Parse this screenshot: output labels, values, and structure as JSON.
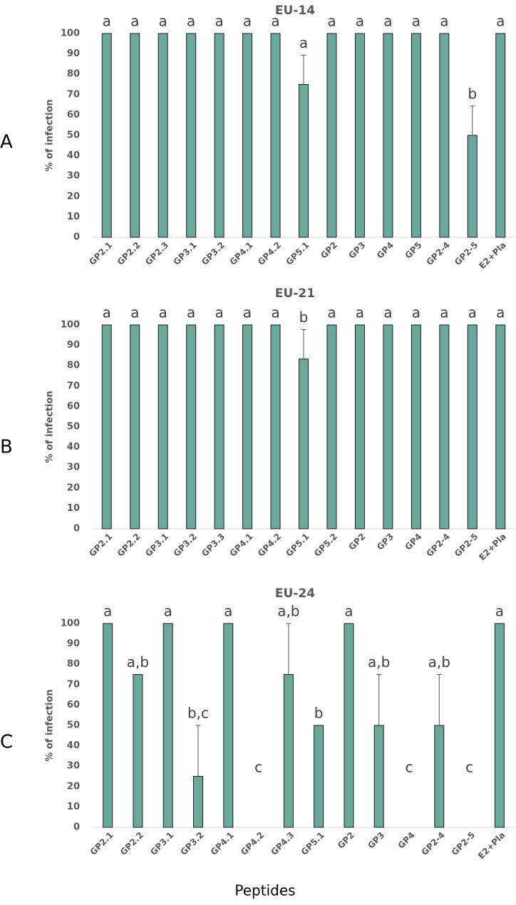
{
  "x_axis_label": "Peptides",
  "chart_data": [
    {
      "panel_label": "A",
      "type": "bar",
      "title": "EU-14",
      "ylabel": "% of infection",
      "ylim": [
        0,
        100
      ],
      "yticks": [
        0,
        10,
        20,
        30,
        40,
        50,
        60,
        70,
        80,
        90,
        100
      ],
      "bar_color": "#6aa99a",
      "categories": [
        "GP2.1",
        "GP2.2",
        "GP2.3",
        "GP3.1",
        "GP3.2",
        "GP4.1",
        "GP4.2",
        "GP5.1",
        "GP2",
        "GP3",
        "GP4",
        "GP5",
        "GP2-4",
        "GP2-5",
        "E2+Pla"
      ],
      "values": [
        100,
        100,
        100,
        100,
        100,
        100,
        100,
        75,
        100,
        100,
        100,
        100,
        100,
        50,
        100
      ],
      "errors": [
        0,
        0,
        0,
        0,
        0,
        0,
        0,
        14.4,
        0,
        0,
        0,
        0,
        0,
        14.4,
        0
      ],
      "significance": [
        "a",
        "a",
        "a",
        "a",
        "a",
        "a",
        "a",
        "a",
        "a",
        "a",
        "a",
        "a",
        "a",
        "b",
        "a"
      ]
    },
    {
      "panel_label": "B",
      "type": "bar",
      "title": "EU-21",
      "ylabel": "% of infection",
      "ylim": [
        0,
        100
      ],
      "yticks": [
        0,
        10,
        20,
        30,
        40,
        50,
        60,
        70,
        80,
        90,
        100
      ],
      "bar_color": "#6aa99a",
      "categories": [
        "GP2.1",
        "GP2.2",
        "GP3.1",
        "GP3.2",
        "GP3.3",
        "GP4.1",
        "GP4.2",
        "GP5.1",
        "GP5.2",
        "GP2",
        "GP3",
        "GP4",
        "GP2-4",
        "GP2-5",
        "E2+Pla"
      ],
      "values": [
        100,
        100,
        100,
        100,
        100,
        100,
        100,
        83.3,
        100,
        100,
        100,
        100,
        100,
        100,
        100
      ],
      "errors": [
        0,
        0,
        0,
        0,
        0,
        0,
        0,
        14.4,
        0,
        0,
        0,
        0,
        0,
        0,
        0
      ],
      "significance": [
        "a",
        "a",
        "a",
        "a",
        "a",
        "a",
        "a",
        "b",
        "a",
        "a",
        "a",
        "a",
        "a",
        "a",
        "a"
      ]
    },
    {
      "panel_label": "C",
      "type": "bar",
      "title": "EU-24",
      "ylabel": "% of infection",
      "ylim": [
        0,
        100
      ],
      "yticks": [
        0,
        10,
        20,
        30,
        40,
        50,
        60,
        70,
        80,
        90,
        100
      ],
      "bar_color": "#6aa99a",
      "categories": [
        "GP2.1",
        "GP2.2",
        "GP3.1",
        "GP3.2",
        "GP4.1",
        "GP4.2",
        "GP4.3",
        "GP5.1",
        "GP2",
        "GP3",
        "GP4",
        "GP2-4",
        "GP2-5",
        "E2+Pla"
      ],
      "values": [
        100,
        75,
        100,
        25,
        100,
        0,
        75,
        50,
        100,
        50,
        0,
        50,
        0,
        100
      ],
      "errors": [
        0,
        0,
        0,
        25,
        0,
        0,
        25,
        0,
        0,
        25,
        0,
        25,
        0,
        0
      ],
      "significance": [
        "a",
        "a,b",
        "a",
        "b,c",
        "a",
        "c",
        "a,b",
        "b",
        "a",
        "a,b",
        "c",
        "a,b",
        "c",
        "a"
      ]
    }
  ]
}
